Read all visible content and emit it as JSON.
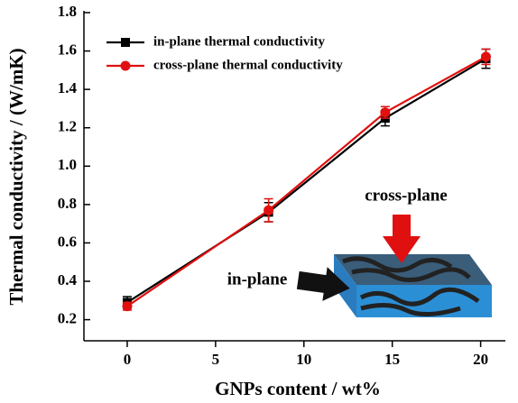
{
  "chart_data": {
    "type": "line",
    "x_label": "GNPs content / wt%",
    "y_label": "Thermal conductivity / (W/mK)",
    "x": [
      0,
      8,
      14.6,
      20.3
    ],
    "series": [
      {
        "name": "in-plane thermal conductivity",
        "color": "#000000",
        "marker": "square",
        "values": [
          0.29,
          0.76,
          1.25,
          1.56
        ],
        "errors": [
          0.03,
          0.05,
          0.04,
          0.05
        ]
      },
      {
        "name": "cross-plane thermal conductivity",
        "color": "#e01010",
        "marker": "circle",
        "values": [
          0.27,
          0.77,
          1.28,
          1.57
        ],
        "errors": [
          0.02,
          0.06,
          0.03,
          0.04
        ]
      }
    ],
    "xlim": [
      -2.45,
      21.4
    ],
    "ylim": [
      0.09,
      1.8
    ],
    "xticks": [
      0,
      5,
      10,
      15,
      20
    ],
    "yticks": [
      0.2,
      0.4,
      0.6,
      0.8,
      {
        "value": 1,
        "label": "1.0"
      },
      1.2,
      1.4,
      1.6,
      1.8
    ],
    "annotations": [
      "cross-plane",
      "in-plane"
    ]
  }
}
